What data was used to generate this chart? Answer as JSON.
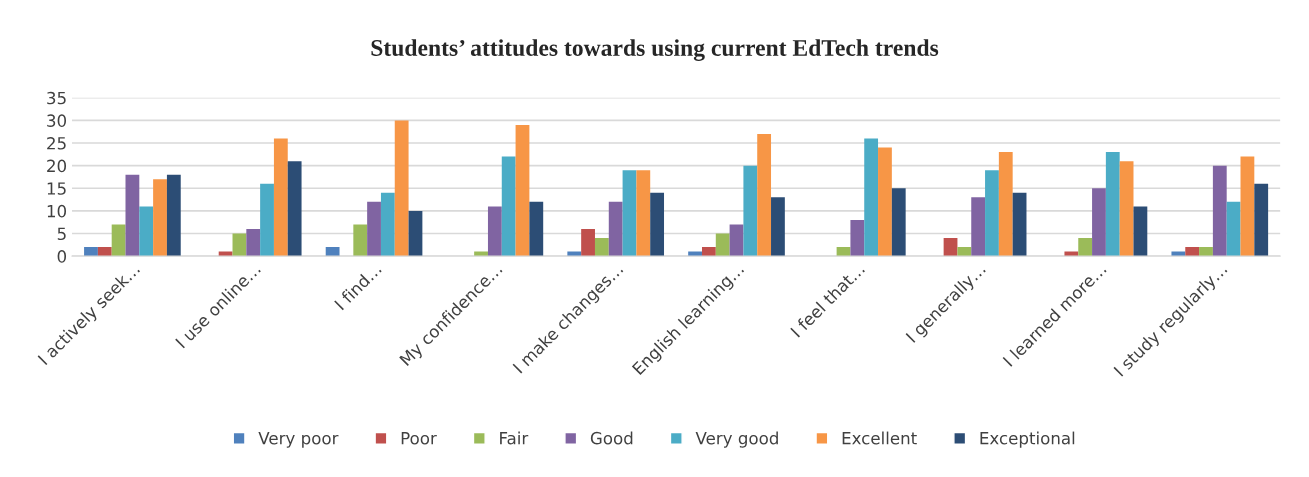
{
  "chart_data": {
    "type": "bar",
    "title": "Students’ attitudes towards using current EdTech trends",
    "categories": [
      "I actively seek…",
      "I use online…",
      "I find…",
      "My confidence…",
      "I make changes…",
      "English learning…",
      "I feel that…",
      "I generally…",
      "I learned more…",
      "I study regularly…"
    ],
    "series": [
      {
        "name": "Very poor",
        "color": "#4f81bd",
        "values": [
          2,
          0,
          2,
          0,
          1,
          1,
          0,
          0,
          0,
          1
        ]
      },
      {
        "name": "Poor",
        "color": "#c0504d",
        "values": [
          2,
          1,
          0,
          0,
          6,
          2,
          0,
          4,
          1,
          2
        ]
      },
      {
        "name": "Fair",
        "color": "#9bbb59",
        "values": [
          7,
          5,
          7,
          1,
          4,
          5,
          2,
          2,
          4,
          2
        ]
      },
      {
        "name": "Good",
        "color": "#8064a2",
        "values": [
          18,
          6,
          12,
          11,
          12,
          7,
          8,
          13,
          15,
          20
        ]
      },
      {
        "name": "Very good",
        "color": "#4bacc6",
        "values": [
          11,
          16,
          14,
          22,
          19,
          20,
          26,
          19,
          23,
          12
        ]
      },
      {
        "name": "Excellent",
        "color": "#f79646",
        "values": [
          17,
          26,
          30,
          29,
          19,
          27,
          24,
          23,
          21,
          22
        ]
      },
      {
        "name": "Exceptional",
        "color": "#2c4d75",
        "values": [
          18,
          21,
          10,
          12,
          14,
          13,
          15,
          14,
          11,
          16
        ]
      }
    ],
    "ylim": [
      0,
      35
    ],
    "yticks": [
      0,
      5,
      10,
      15,
      20,
      25,
      30,
      35
    ],
    "grid": "y",
    "legend": "bottom"
  }
}
